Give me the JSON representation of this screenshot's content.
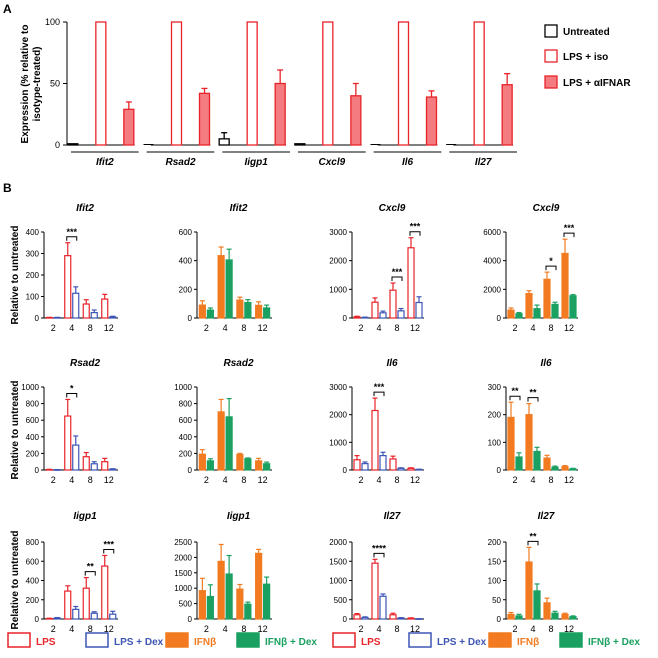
{
  "colors": {
    "lps": "#e8232a",
    "lps_fill": "#f47c80",
    "dex_blue": "#3d55b5",
    "ifnb": "#f27b21",
    "ifnb_dex": "#1aa061",
    "black": "#000000"
  },
  "panel_a": {
    "label": "A",
    "ylabel": "Expression (% relative to isotype-treated)",
    "ylabel_lines": [
      "Expression (% relative to",
      "isotype-treated)"
    ],
    "yticks": [
      0,
      50,
      100
    ],
    "ylim": [
      0,
      100
    ],
    "legend": [
      "Untreated",
      "LPS + iso",
      "LPS + αIFNAR"
    ],
    "chart_data": {
      "type": "bar",
      "categories": [
        "Ifit2",
        "Rsad2",
        "Iigp1",
        "Cxcl9",
        "Il6",
        "Il27"
      ],
      "series": [
        {
          "name": "Untreated",
          "values": [
            1,
            0,
            5,
            1,
            0,
            0
          ],
          "errors": [
            0,
            0,
            5,
            0,
            0,
            0
          ]
        },
        {
          "name": "LPS + iso",
          "values": [
            100,
            100,
            100,
            100,
            100,
            100
          ],
          "errors": [
            0,
            0,
            0,
            0,
            0,
            0
          ]
        },
        {
          "name": "LPS + αIFNAR",
          "values": [
            29,
            42,
            50,
            40,
            39,
            49
          ],
          "errors": [
            6,
            4,
            11,
            10,
            5,
            9
          ]
        }
      ]
    }
  },
  "panel_b": {
    "label": "B",
    "ylabel": "Relative to untreated",
    "chart_data": [
      {
        "type": "bar",
        "title": "Ifit2",
        "pair": "lps",
        "categories": [
          "2",
          "4",
          "8",
          "12"
        ],
        "ylim": [
          0,
          400
        ],
        "yticks": [
          0,
          100,
          200,
          300,
          400
        ],
        "series": [
          {
            "name": "LPS",
            "values": [
              2,
              290,
              65,
              88
            ],
            "errors": [
              1,
              60,
              20,
              22
            ]
          },
          {
            "name": "LPS + Dex",
            "values": [
              2,
              115,
              25,
              5
            ],
            "errors": [
              1,
              30,
              12,
              3
            ]
          }
        ],
        "sig": [
          {
            "index": 1,
            "label": "***"
          }
        ]
      },
      {
        "type": "bar",
        "title": "Ifit2",
        "pair": "ifn",
        "categories": [
          "2",
          "4",
          "8",
          "12"
        ],
        "ylim": [
          0,
          600
        ],
        "yticks": [
          0,
          200,
          400,
          600
        ],
        "series": [
          {
            "name": "IFNβ",
            "values": [
              90,
              435,
              125,
              88
            ],
            "errors": [
              30,
              60,
              20,
              25
            ]
          },
          {
            "name": "IFNβ + Dex",
            "values": [
              55,
              405,
              108,
              70
            ],
            "errors": [
              15,
              75,
              20,
              20
            ]
          }
        ],
        "sig": []
      },
      {
        "type": "bar",
        "title": "Cxcl9",
        "pair": "lps",
        "categories": [
          "2",
          "4",
          "8",
          "12"
        ],
        "ylim": [
          0,
          3000
        ],
        "yticks": [
          0,
          1000,
          2000,
          3000
        ],
        "series": [
          {
            "name": "LPS",
            "values": [
              40,
              550,
              970,
              2450
            ],
            "errors": [
              20,
              150,
              250,
              350
            ]
          },
          {
            "name": "LPS + Dex",
            "values": [
              20,
              180,
              250,
              540
            ],
            "errors": [
              10,
              60,
              80,
              200
            ]
          }
        ],
        "sig": [
          {
            "index": 2,
            "label": "***"
          },
          {
            "index": 3,
            "label": "***"
          }
        ]
      },
      {
        "type": "bar",
        "title": "Cxcl9",
        "pair": "ifn",
        "categories": [
          "2",
          "4",
          "8",
          "12"
        ],
        "ylim": [
          0,
          6000
        ],
        "yticks": [
          0,
          2000,
          4000,
          6000
        ],
        "series": [
          {
            "name": "IFNβ",
            "values": [
              550,
              1700,
              2700,
              4500
            ],
            "errors": [
              150,
              200,
              500,
              1000
            ]
          },
          {
            "name": "IFNβ + Dex",
            "values": [
              300,
              650,
              950,
              1550
            ],
            "errors": [
              80,
              250,
              150,
              80
            ]
          }
        ],
        "sig": [
          {
            "index": 2,
            "label": "*"
          },
          {
            "index": 3,
            "label": "***"
          }
        ]
      },
      {
        "type": "bar",
        "title": "Rsad2",
        "pair": "lps",
        "categories": [
          "2",
          "4",
          "8",
          "12"
        ],
        "ylim": [
          0,
          1000
        ],
        "yticks": [
          0,
          200,
          400,
          600,
          800,
          1000
        ],
        "series": [
          {
            "name": "LPS",
            "values": [
              5,
              650,
              160,
              100
            ],
            "errors": [
              3,
              200,
              50,
              40
            ]
          },
          {
            "name": "LPS + Dex",
            "values": [
              3,
              300,
              75,
              10
            ],
            "errors": [
              2,
              110,
              25,
              5
            ]
          }
        ],
        "sig": [
          {
            "index": 1,
            "label": "*"
          }
        ]
      },
      {
        "type": "bar",
        "title": "Rsad2",
        "pair": "ifn",
        "categories": [
          "2",
          "4",
          "8",
          "12"
        ],
        "ylim": [
          0,
          1000
        ],
        "yticks": [
          0,
          200,
          400,
          600,
          800,
          1000
        ],
        "series": [
          {
            "name": "IFNβ",
            "values": [
              190,
              700,
              185,
              110
            ],
            "errors": [
              55,
              150,
              15,
              30
            ]
          },
          {
            "name": "IFNβ + Dex",
            "values": [
              110,
              640,
              135,
              75
            ],
            "errors": [
              25,
              220,
              10,
              20
            ]
          }
        ],
        "sig": []
      },
      {
        "type": "bar",
        "title": "Il6",
        "pair": "lps",
        "categories": [
          "2",
          "4",
          "8",
          "12"
        ],
        "ylim": [
          0,
          3000
        ],
        "yticks": [
          0,
          1000,
          2000,
          3000
        ],
        "series": [
          {
            "name": "LPS",
            "values": [
              370,
              2150,
              400,
              60
            ],
            "errors": [
              150,
              450,
              100,
              20
            ]
          },
          {
            "name": "LPS + Dex",
            "values": [
              230,
              520,
              60,
              20
            ],
            "errors": [
              60,
              120,
              20,
              8
            ]
          }
        ],
        "sig": [
          {
            "index": 1,
            "label": "***"
          }
        ]
      },
      {
        "type": "bar",
        "title": "Il6",
        "pair": "ifn",
        "categories": [
          "2",
          "4",
          "8",
          "12"
        ],
        "ylim": [
          0,
          300
        ],
        "yticks": [
          0,
          100,
          200,
          300
        ],
        "series": [
          {
            "name": "IFNβ",
            "values": [
              190,
              200,
              43,
              12
            ],
            "errors": [
              55,
              40,
              10,
              4
            ]
          },
          {
            "name": "IFNβ + Dex",
            "values": [
              47,
              67,
              10,
              4
            ],
            "errors": [
              15,
              15,
              4,
              2
            ]
          }
        ],
        "sig": [
          {
            "index": 0,
            "label": "**"
          },
          {
            "index": 1,
            "label": "**"
          }
        ]
      },
      {
        "type": "bar",
        "title": "Iigp1",
        "pair": "lps",
        "categories": [
          "2",
          "4",
          "8",
          "12"
        ],
        "ylim": [
          0,
          800
        ],
        "yticks": [
          0,
          200,
          400,
          600,
          800
        ],
        "series": [
          {
            "name": "LPS",
            "values": [
              5,
              290,
              320,
              550
            ],
            "errors": [
              3,
              55,
              110,
              110
            ]
          },
          {
            "name": "LPS + Dex",
            "values": [
              10,
              100,
              60,
              50
            ],
            "errors": [
              5,
              30,
              15,
              30
            ]
          }
        ],
        "sig": [
          {
            "index": 2,
            "label": "**"
          },
          {
            "index": 3,
            "label": "***"
          }
        ]
      },
      {
        "type": "bar",
        "title": "Iigp1",
        "pair": "ifn",
        "categories": [
          "2",
          "4",
          "8",
          "12"
        ],
        "ylim": [
          0,
          2500
        ],
        "yticks": [
          0,
          500,
          1000,
          1500,
          2000,
          2500
        ],
        "series": [
          {
            "name": "IFNβ",
            "values": [
              920,
              1870,
              970,
              2130
            ],
            "errors": [
              400,
              550,
              150,
              130
            ]
          },
          {
            "name": "IFNβ + Dex",
            "values": [
              730,
              1460,
              480,
              1130
            ],
            "errors": [
              380,
              600,
              70,
              230
            ]
          }
        ],
        "sig": []
      },
      {
        "type": "bar",
        "title": "Il27",
        "pair": "lps",
        "categories": [
          "2",
          "4",
          "8",
          "12"
        ],
        "ylim": [
          0,
          2000
        ],
        "yticks": [
          0,
          500,
          1000,
          1500,
          2000
        ],
        "series": [
          {
            "name": "LPS",
            "values": [
              110,
              1450,
              110,
              20
            ],
            "errors": [
              30,
              100,
              40,
              10
            ]
          },
          {
            "name": "LPS + Dex",
            "values": [
              40,
              590,
              25,
              5
            ],
            "errors": [
              15,
              60,
              10,
              3
            ]
          }
        ],
        "sig": [
          {
            "index": 1,
            "label": "****"
          }
        ]
      },
      {
        "type": "bar",
        "title": "Il27",
        "pair": "ifn",
        "categories": [
          "2",
          "4",
          "8",
          "12"
        ],
        "ylim": [
          0,
          200
        ],
        "yticks": [
          0,
          50,
          100,
          150,
          200
        ],
        "series": [
          {
            "name": "IFNβ",
            "values": [
              12,
              148,
              42,
              12
            ],
            "errors": [
              5,
              38,
              12,
              3
            ]
          },
          {
            "name": "IFNβ + Dex",
            "values": [
              8,
              73,
              15,
              6
            ],
            "errors": [
              4,
              18,
              5,
              2
            ]
          }
        ],
        "sig": [
          {
            "index": 1,
            "label": "**"
          }
        ]
      }
    ],
    "legend": [
      "LPS",
      "LPS + Dex",
      "IFNβ",
      "IFNβ + Dex",
      "LPS",
      "LPS + Dex",
      "IFNβ",
      "IFNβ + Dex"
    ]
  }
}
